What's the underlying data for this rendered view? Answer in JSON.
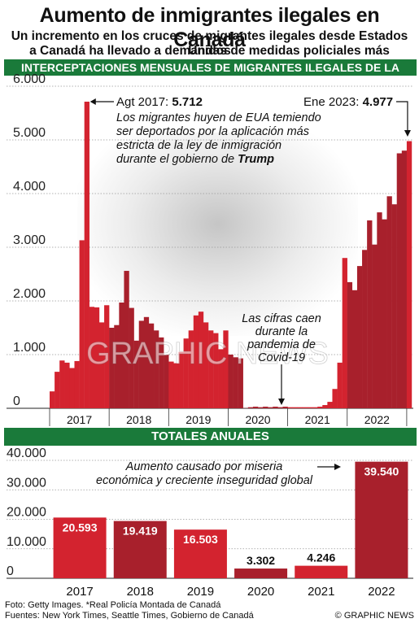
{
  "title": "Aumento de inmigrantes ilegales en Canadá",
  "subtitle_line1": "Un incremento en los cruces de migrantes ilegales desde Estados Unidos",
  "subtitle_line2": "a Canadá ha llevado a demandas de medidas policiales más enérgicas",
  "watermark": "GRAPHIC NEWS",
  "colors": {
    "bar_dark": "#a8202c",
    "bar_bright": "#d3232f",
    "band_green": "#1a7a3a"
  },
  "chart_data": [
    {
      "type": "bar",
      "title": "INTERCEPTACIONES MENSUALES DE MIGRANTES ILEGALES DE LA RCMP*",
      "y_tick_labels": [
        "0",
        "1.000",
        "2.000",
        "3.000",
        "4.000",
        "5.000",
        "6.000"
      ],
      "y_ticks": [
        0,
        1000,
        2000,
        3000,
        4000,
        5000,
        6000
      ],
      "ylim": [
        0,
        6000
      ],
      "years": [
        "2017",
        "2018",
        "2019",
        "2020",
        "2021",
        "2022"
      ],
      "months": [
        {
          "x": "2017-01",
          "y": 315
        },
        {
          "x": "2017-02",
          "y": 680
        },
        {
          "x": "2017-03",
          "y": 890
        },
        {
          "x": "2017-04",
          "y": 850
        },
        {
          "x": "2017-05",
          "y": 750
        },
        {
          "x": "2017-06",
          "y": 880
        },
        {
          "x": "2017-07",
          "y": 3130
        },
        {
          "x": "2017-08",
          "y": 5712
        },
        {
          "x": "2017-09",
          "y": 1890
        },
        {
          "x": "2017-10",
          "y": 1880
        },
        {
          "x": "2017-11",
          "y": 1600
        },
        {
          "x": "2017-12",
          "y": 1920
        },
        {
          "x": "2018-01",
          "y": 1500
        },
        {
          "x": "2018-02",
          "y": 1550
        },
        {
          "x": "2018-03",
          "y": 1970
        },
        {
          "x": "2018-04",
          "y": 2560
        },
        {
          "x": "2018-05",
          "y": 1870
        },
        {
          "x": "2018-06",
          "y": 1260
        },
        {
          "x": "2018-07",
          "y": 1630
        },
        {
          "x": "2018-08",
          "y": 1700
        },
        {
          "x": "2018-09",
          "y": 1580
        },
        {
          "x": "2018-10",
          "y": 1450
        },
        {
          "x": "2018-11",
          "y": 1320
        },
        {
          "x": "2018-12",
          "y": 1000
        },
        {
          "x": "2019-01",
          "y": 870
        },
        {
          "x": "2019-02",
          "y": 840
        },
        {
          "x": "2019-03",
          "y": 1050
        },
        {
          "x": "2019-04",
          "y": 1300
        },
        {
          "x": "2019-05",
          "y": 1450
        },
        {
          "x": "2019-06",
          "y": 1730
        },
        {
          "x": "2019-07",
          "y": 1800
        },
        {
          "x": "2019-08",
          "y": 1600
        },
        {
          "x": "2019-09",
          "y": 1450
        },
        {
          "x": "2019-10",
          "y": 1400
        },
        {
          "x": "2019-11",
          "y": 1100
        },
        {
          "x": "2019-12",
          "y": 1450
        },
        {
          "x": "2020-01",
          "y": 1000
        },
        {
          "x": "2020-02",
          "y": 950
        },
        {
          "x": "2020-03",
          "y": 930
        },
        {
          "x": "2020-04",
          "y": 5
        },
        {
          "x": "2020-05",
          "y": 20
        },
        {
          "x": "2020-06",
          "y": 30
        },
        {
          "x": "2020-07",
          "y": 20
        },
        {
          "x": "2020-08",
          "y": 30
        },
        {
          "x": "2020-09",
          "y": 20
        },
        {
          "x": "2020-10",
          "y": 30
        },
        {
          "x": "2020-11",
          "y": 20
        },
        {
          "x": "2020-12",
          "y": 30
        },
        {
          "x": "2021-01",
          "y": 20
        },
        {
          "x": "2021-02",
          "y": 20
        },
        {
          "x": "2021-03",
          "y": 20
        },
        {
          "x": "2021-04",
          "y": 20
        },
        {
          "x": "2021-05",
          "y": 20
        },
        {
          "x": "2021-06",
          "y": 20
        },
        {
          "x": "2021-07",
          "y": 30
        },
        {
          "x": "2021-08",
          "y": 60
        },
        {
          "x": "2021-09",
          "y": 120
        },
        {
          "x": "2021-10",
          "y": 360
        },
        {
          "x": "2021-11",
          "y": 850
        },
        {
          "x": "2021-12",
          "y": 2800
        },
        {
          "x": "2022-01",
          "y": 2350
        },
        {
          "x": "2022-02",
          "y": 2200
        },
        {
          "x": "2022-03",
          "y": 2650
        },
        {
          "x": "2022-04",
          "y": 2950
        },
        {
          "x": "2022-05",
          "y": 3500
        },
        {
          "x": "2022-06",
          "y": 3050
        },
        {
          "x": "2022-07",
          "y": 3650
        },
        {
          "x": "2022-08",
          "y": 3520
        },
        {
          "x": "2022-09",
          "y": 3950
        },
        {
          "x": "2022-10",
          "y": 3800
        },
        {
          "x": "2022-11",
          "y": 4750
        },
        {
          "x": "2022-12",
          "y": 4800
        },
        {
          "x": "2023-01",
          "y": 4977
        }
      ],
      "annotations": {
        "peak_2017_label": "Agt 2017: ",
        "peak_2017_value": "5.712",
        "peak_2017_text": [
          "Los migrantes huyen de EUA temiendo",
          "ser deportados por la aplicación más",
          "estricta de la ley de inmigración",
          "durante el gobierno de "
        ],
        "peak_2017_emph": "Trump",
        "jan_2023_label": "Ene 2023: ",
        "jan_2023_value": "4.977",
        "covid_text": [
          "Las cifras caen",
          "durante la",
          "pandemia de",
          "Covid-19"
        ]
      }
    },
    {
      "type": "bar",
      "title": "TOTALES ANUALES",
      "y_tick_labels": [
        "0",
        "10.000",
        "20.000",
        "30.000",
        "40.000"
      ],
      "y_ticks": [
        0,
        10000,
        20000,
        30000,
        40000
      ],
      "ylim": [
        0,
        40000
      ],
      "categories": [
        "2017",
        "2018",
        "2019",
        "2020",
        "2021",
        "2022"
      ],
      "values": [
        20593,
        19419,
        16503,
        3302,
        4246,
        39540
      ],
      "value_labels": [
        "20.593",
        "19.419",
        "16.503",
        "3.302",
        "4.246",
        "39.540"
      ],
      "annotation": [
        "Aumento causado por miseria",
        "económica y creciente inseguridad global"
      ]
    }
  ],
  "footer": {
    "source_line1": "Foto: Getty Images. *Real Policía Montada de Canadá",
    "source_line2": "Fuentes: New York Times, Seattle Times, Gobierno de Canadá",
    "credit": "© GRAPHIC NEWS"
  }
}
